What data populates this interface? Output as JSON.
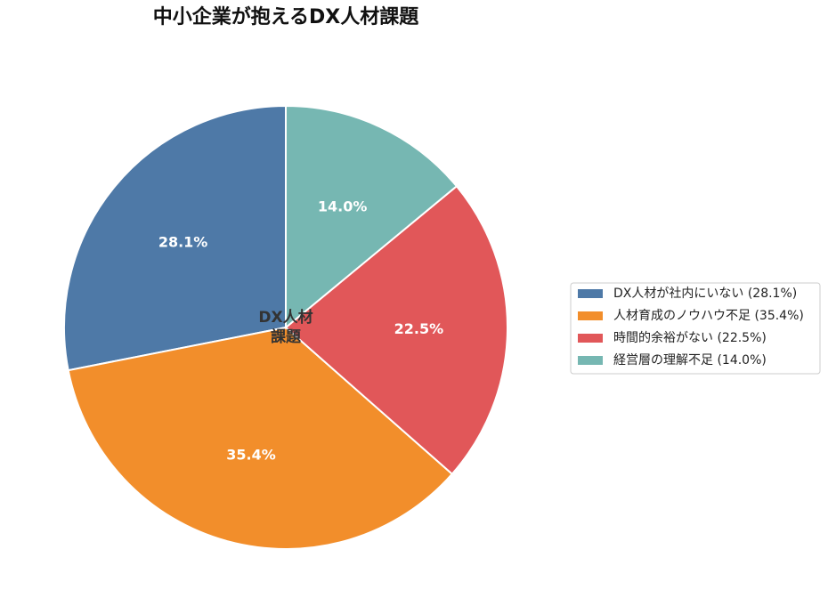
{
  "chart_data": {
    "type": "pie",
    "title": "中小企業が抱えるDX人材課題",
    "categories": [
      "DX人材が社内にいない (28.1%)",
      "人材育成のノウハウ不足 (35.4%)",
      "時間的余裕がない (22.5%)",
      "経営層の理解不足 (14.0%)"
    ],
    "values": [
      28.1,
      35.4,
      22.5,
      14.0
    ],
    "value_labels": [
      "28.1%",
      "35.4%",
      "22.5%",
      "14.0%"
    ],
    "colors": [
      "#4e79a7",
      "#f28e2b",
      "#e15759",
      "#76b7b2"
    ],
    "center_label": [
      "DX人材",
      "課題"
    ],
    "start_angle": 90,
    "direction": "counterclockwise",
    "legend": "right"
  }
}
